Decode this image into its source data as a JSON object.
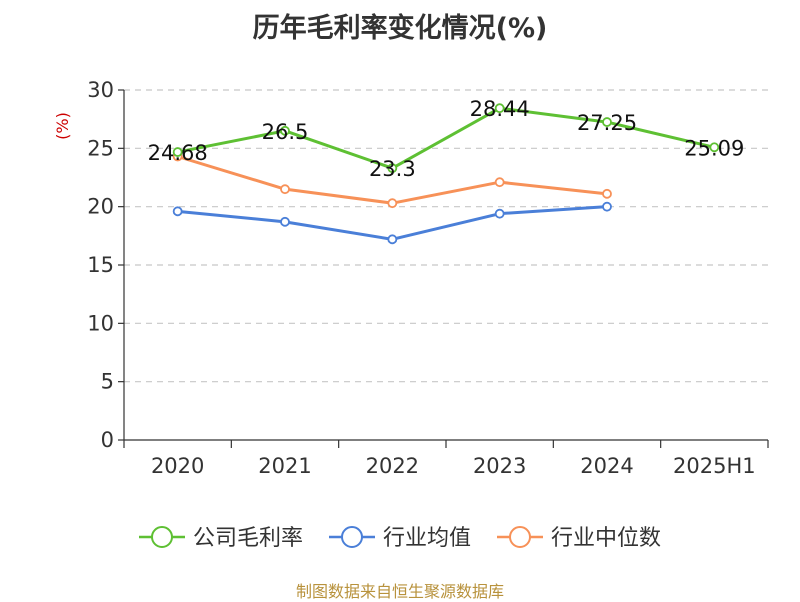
{
  "title": "历年毛利率变化情况(%)",
  "footer": "制图数据来自恒生聚源数据库",
  "colors": {
    "company": "#5ec033",
    "industry_avg": "#4a7fd8",
    "industry_median": "#f79158",
    "axis": "#333333",
    "grid": "#c8c8c8",
    "ylabel": "#cc0000"
  },
  "chart_data": {
    "type": "line",
    "title": "历年毛利率变化情况(%)",
    "xlabel": "",
    "ylabel": "(%)",
    "categories": [
      "2020",
      "2021",
      "2022",
      "2023",
      "2024",
      "2025H1"
    ],
    "ylim": [
      0,
      30
    ],
    "yticks": [
      0,
      5,
      10,
      15,
      20,
      25,
      30
    ],
    "grid": true,
    "legend_position": "bottom",
    "series": [
      {
        "key": "company",
        "name": "公司毛利率",
        "values": [
          24.68,
          26.5,
          23.3,
          28.44,
          27.25,
          25.09
        ],
        "labels": [
          "24.68",
          "26.5",
          "23.3",
          "28.44",
          "27.25",
          "25.09"
        ]
      },
      {
        "key": "industry_avg",
        "name": "行业均值",
        "values": [
          19.6,
          18.7,
          17.2,
          19.4,
          20.0,
          null
        ],
        "labels": null
      },
      {
        "key": "industry_median",
        "name": "行业中位数",
        "values": [
          24.3,
          21.5,
          20.3,
          22.1,
          21.1,
          null
        ],
        "labels": null
      }
    ]
  }
}
